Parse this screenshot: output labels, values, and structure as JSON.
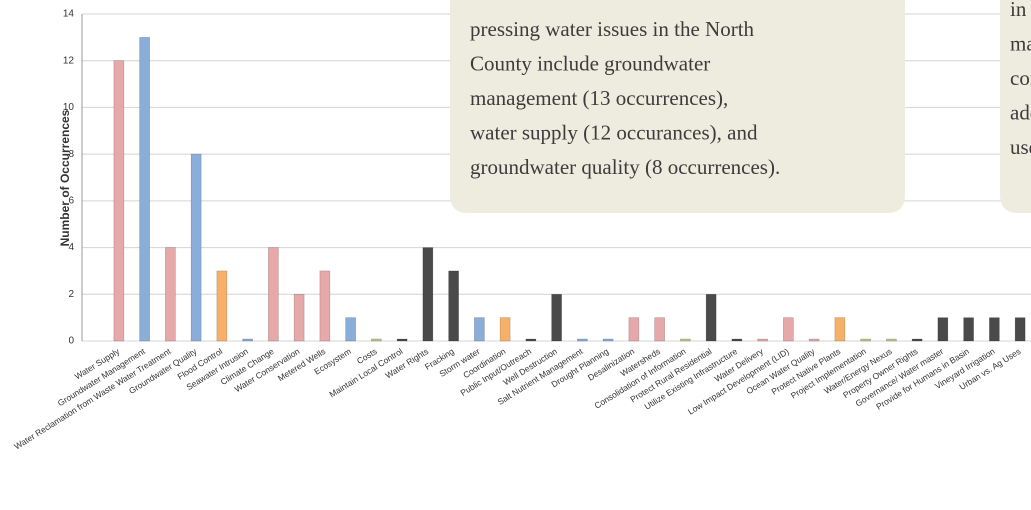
{
  "chart_data": {
    "type": "bar",
    "y_label": "Number of Occurrences",
    "categories": [
      "Water Supply",
      "Groundwater Management",
      "Water Reclamation from Waste Water Treatment",
      "Groundwater Quality",
      "Flood Control",
      "Seawater Intrusion",
      "Climate Change",
      "Water Conservation",
      "Metered Wells",
      "Ecosystem",
      "Costs",
      "Maintain Local Control",
      "Water Rights",
      "Fracking",
      "Storm water",
      "Coordination",
      "Public Input/Outreach",
      "Well Destruction",
      "Salt Nutrient Management",
      "Drought Planning",
      "Desalinization",
      "Watersheds",
      "Consolidation of Information",
      "Protect Rural Residential",
      "Utilize Existing Infrastructure",
      "Water Delivery",
      "Low Impact Development (LID)",
      "Ocean Water Quality",
      "Protect Native Plants",
      "Project Implementation",
      "Water/Energy Nexus",
      "Property Owner Rights",
      "Governance/ Water master",
      "Provide  for Humans in Basin",
      "Vineyard Irrigation",
      "Urban vs. Ag Uses"
    ],
    "values": [
      12,
      13,
      4,
      8,
      3,
      0,
      4,
      2,
      3,
      1,
      0,
      0,
      4,
      3,
      1,
      1,
      0,
      2,
      0,
      0,
      1,
      1,
      0,
      2,
      0,
      0,
      1,
      0,
      1,
      0,
      0,
      0,
      1,
      1,
      1,
      1
    ],
    "colors": [
      "#e6a8a8",
      "#8badda",
      "#e6a8a8",
      "#8badda",
      "#f8b068",
      "#8badda",
      "#e6a8a8",
      "#e6a8a8",
      "#e6a8a8",
      "#8badda",
      "#b3c98c",
      "#4a4a4a",
      "#4a4a4a",
      "#4a4a4a",
      "#8badda",
      "#f8b068",
      "#4a4a4a",
      "#4a4a4a",
      "#8badda",
      "#8badda",
      "#e6a8a8",
      "#e6a8a8",
      "#b3c98c",
      "#4a4a4a",
      "#4a4a4a",
      "#e6a8a8",
      "#e6a8a8",
      "#e6a8a8",
      "#f8b068",
      "#b3c98c",
      "#b3c98c",
      "#4a4a4a",
      "#4a4a4a",
      "#4a4a4a",
      "#4a4a4a",
      "#4a4a4a"
    ],
    "ylim": [
      0,
      14
    ],
    "yticks": [
      0,
      2,
      4,
      6,
      8,
      10,
      12,
      14
    ],
    "grid": true,
    "annotations": [
      {
        "lines": [
          "pressing water issues in the North",
          "County include groundwater",
          "management (13 occurrences),",
          "water supply (12 occurances), and",
          "groundwater quality (8 occurrences)."
        ]
      },
      {
        "lines": [
          "in part t",
          "managem",
          "consider",
          "addition",
          "use or g"
        ]
      }
    ]
  }
}
